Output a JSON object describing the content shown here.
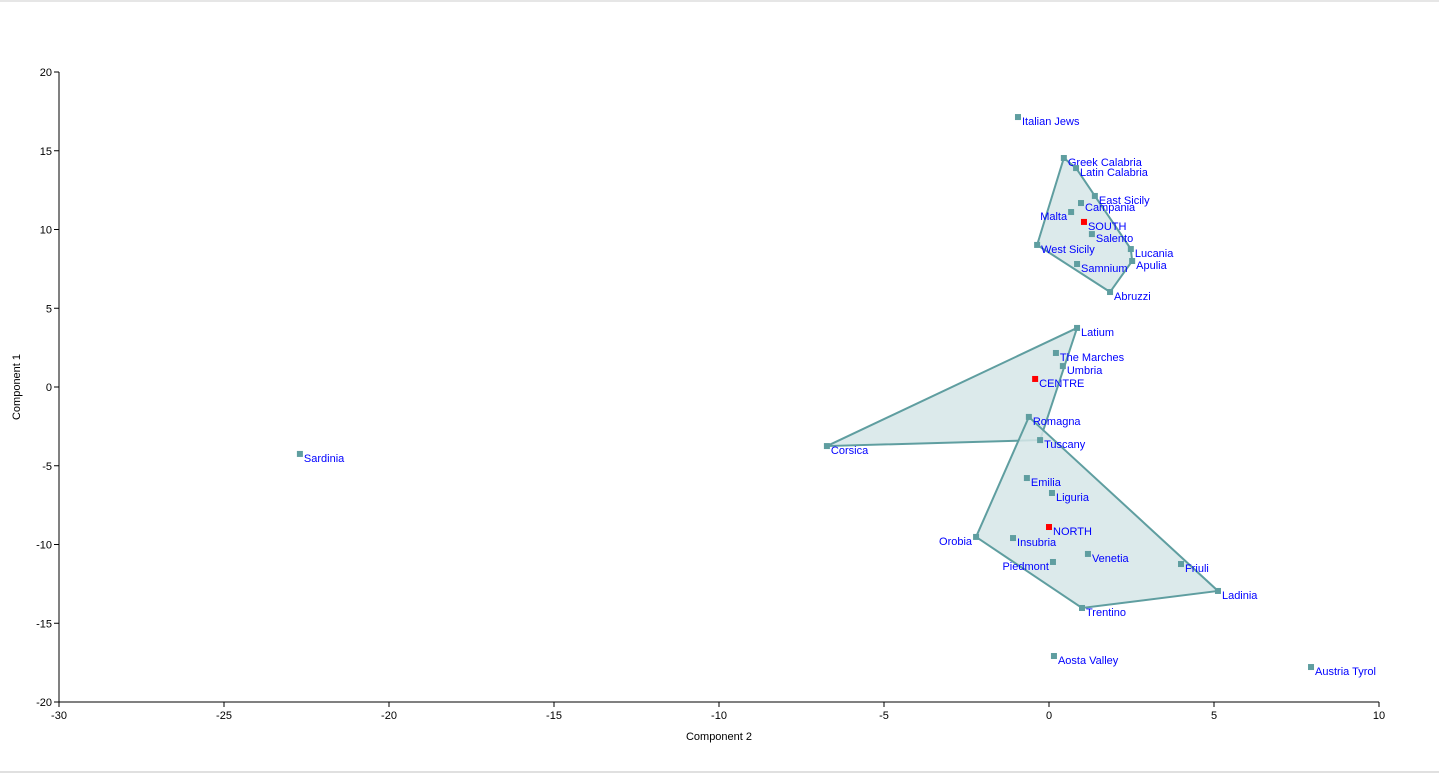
{
  "chart_data": {
    "type": "scatter",
    "title": "",
    "xlabel": "Component 2",
    "ylabel": "Component 1",
    "xlim": [
      -30,
      10
    ],
    "ylim": [
      -20,
      20
    ],
    "xticks": [
      -30,
      -25,
      -20,
      -15,
      -10,
      -5,
      0,
      5,
      10
    ],
    "yticks": [
      -20,
      -15,
      -10,
      -5,
      0,
      5,
      10,
      15,
      20
    ],
    "grid": false,
    "colors": {
      "point": "#5f9ea0",
      "centroid": "#ff0000",
      "label": "#0000ff",
      "hull_fill": "#d6e6e7",
      "hull_stroke": "#5f9ea0"
    },
    "points": [
      {
        "name": "Italian Jews",
        "x": -0.94,
        "y": 17.14
      },
      {
        "name": "Greek Calabria",
        "x": 0.45,
        "y": 14.54
      },
      {
        "name": "Latin Calabria",
        "x": 0.82,
        "y": 13.9
      },
      {
        "name": "East Sicily",
        "x": 1.39,
        "y": 12.13
      },
      {
        "name": "Campania",
        "x": 0.97,
        "y": 11.68
      },
      {
        "name": "Malta",
        "x": 0.67,
        "y": 11.11,
        "label_side": "left"
      },
      {
        "name": "SOUTH",
        "x": 1.06,
        "y": 10.48,
        "centroid": true
      },
      {
        "name": "Salento",
        "x": 1.3,
        "y": 9.71
      },
      {
        "name": "West Sicily",
        "x": -0.36,
        "y": 9.02
      },
      {
        "name": "Lucania",
        "x": 2.48,
        "y": 8.76
      },
      {
        "name": "Apulia",
        "x": 2.52,
        "y": 8.0
      },
      {
        "name": "Samnium",
        "x": 0.85,
        "y": 7.81
      },
      {
        "name": "Abruzzi",
        "x": 1.85,
        "y": 6.03
      },
      {
        "name": "Latium",
        "x": 0.85,
        "y": 3.75
      },
      {
        "name": "The Marches",
        "x": 0.21,
        "y": 2.16
      },
      {
        "name": "Umbria",
        "x": 0.42,
        "y": 1.33
      },
      {
        "name": "CENTRE",
        "x": -0.42,
        "y": 0.51,
        "centroid": true
      },
      {
        "name": "Romagna",
        "x": -0.61,
        "y": -1.9
      },
      {
        "name": "Tuscany",
        "x": -0.27,
        "y": -3.37
      },
      {
        "name": "Corsica",
        "x": -6.73,
        "y": -3.75
      },
      {
        "name": "Sardinia",
        "x": -22.7,
        "y": -4.25
      },
      {
        "name": "Emilia",
        "x": -0.67,
        "y": -5.78
      },
      {
        "name": "Liguria",
        "x": 0.09,
        "y": -6.73
      },
      {
        "name": "NORTH",
        "x": 0.0,
        "y": -8.89,
        "centroid": true
      },
      {
        "name": "Orobia",
        "x": -2.21,
        "y": -9.52,
        "label_side": "left"
      },
      {
        "name": "Insubria",
        "x": -1.09,
        "y": -9.59
      },
      {
        "name": "Venetia",
        "x": 1.18,
        "y": -10.6
      },
      {
        "name": "Piedmont",
        "x": 0.12,
        "y": -11.11,
        "label_side": "left"
      },
      {
        "name": "Friuli",
        "x": 4.0,
        "y": -11.24
      },
      {
        "name": "Ladinia",
        "x": 5.12,
        "y": -12.95
      },
      {
        "name": "Trentino",
        "x": 1.0,
        "y": -14.03
      },
      {
        "name": "Aosta Valley",
        "x": 0.15,
        "y": -17.08
      },
      {
        "name": "Austria Tyrol",
        "x": 7.94,
        "y": -17.78
      }
    ],
    "hulls": [
      {
        "group": "SOUTH",
        "vertices": [
          "Greek Calabria",
          "Latin Calabria",
          "East Sicily",
          "Lucania",
          "Apulia",
          "Abruzzi",
          "West Sicily"
        ]
      },
      {
        "group": "CENTRE",
        "vertices": [
          "Latium",
          "Tuscany",
          "Corsica"
        ]
      },
      {
        "group": "NORTH",
        "vertices": [
          "Romagna",
          "Ladinia",
          "Trentino",
          "Orobia"
        ]
      }
    ]
  }
}
